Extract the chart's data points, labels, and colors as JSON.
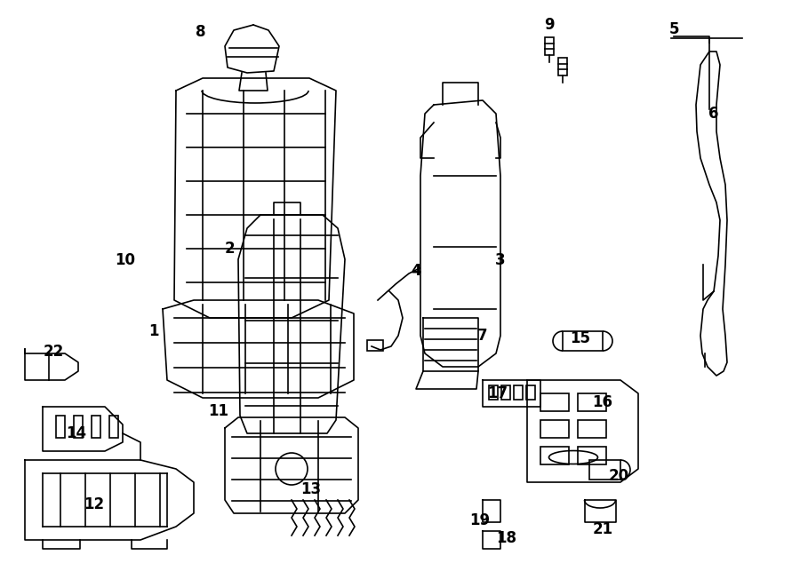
{
  "background_color": "#ffffff",
  "line_color": "#000000",
  "figsize": [
    9.0,
    6.61
  ],
  "dpi": 100
}
